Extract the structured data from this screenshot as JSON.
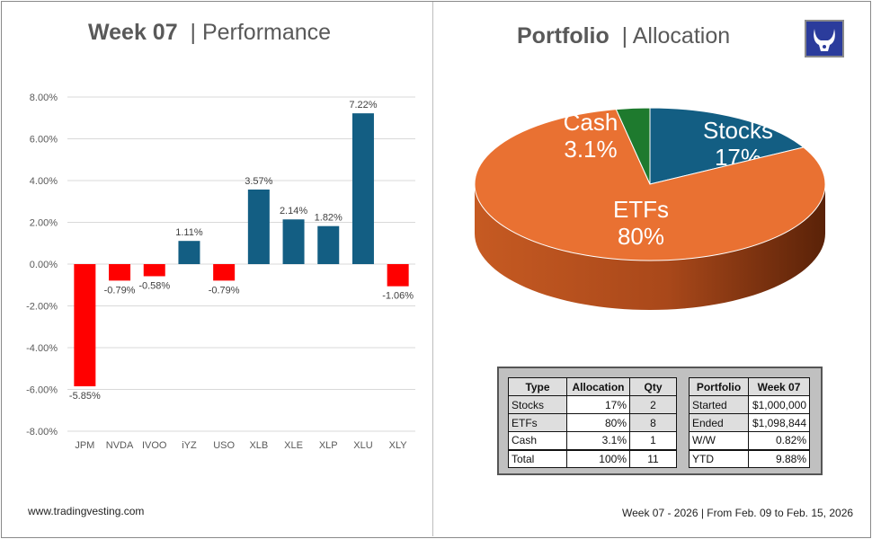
{
  "left": {
    "title_bold": "Week 07",
    "title_rest": "| Performance"
  },
  "right": {
    "title_bold": "Portfolio",
    "title_rest": "| Allocation"
  },
  "logo": {
    "icon": "bull-horns-icon",
    "bg": "#2b3c9c"
  },
  "chart_data": [
    {
      "type": "bar",
      "title": "",
      "categories": [
        "JPM",
        "NVDA",
        "IVOO",
        "iYZ",
        "USO",
        "XLB",
        "XLE",
        "XLP",
        "XLU",
        "XLY"
      ],
      "values": [
        -5.85,
        -0.79,
        -0.58,
        1.11,
        -0.79,
        3.57,
        2.14,
        1.82,
        7.22,
        -1.06
      ],
      "data_labels": [
        "-5.85%",
        "-0.79%",
        "-0.58%",
        "1.11%",
        "-0.79%",
        "3.57%",
        "2.14%",
        "1.82%",
        "7.22%",
        "-1.06%"
      ],
      "ylim": [
        -8,
        8
      ],
      "yticks": [
        "8.00%",
        "6.00%",
        "4.00%",
        "2.00%",
        "0.00%",
        "-2.00%",
        "-4.00%",
        "-6.00%",
        "-8.00%"
      ],
      "grid": true,
      "colors": {
        "positive": "#135e83",
        "negative": "#ff0000"
      }
    },
    {
      "type": "pie",
      "style": "3d",
      "slices": [
        {
          "label": "Stocks",
          "value": 17,
          "text": "17%",
          "color": "#135e83"
        },
        {
          "label": "ETFs",
          "value": 80,
          "text": "80%",
          "color": "#e97132"
        },
        {
          "label": "Cash",
          "value": 3.1,
          "text": "3.1%",
          "color": "#1e7a2e"
        }
      ]
    }
  ],
  "alloc_table": {
    "headers": [
      "Type",
      "Allocation",
      "Qty"
    ],
    "rows": [
      [
        "Stocks",
        "17%",
        "2"
      ],
      [
        "ETFs",
        "80%",
        "8"
      ],
      [
        "Cash",
        "3.1%",
        "1"
      ],
      [
        "Total",
        "100%",
        "11"
      ]
    ]
  },
  "port_table": {
    "headers": [
      "Portfolio",
      "Week 07"
    ],
    "rows": [
      [
        "Started",
        "$1,000,000"
      ],
      [
        "Ended",
        "$1,098,844"
      ],
      [
        "W/W",
        "0.82%"
      ],
      [
        "YTD",
        "9.88%"
      ]
    ]
  },
  "footer": {
    "site": "www.tradingvesting.com",
    "period": "Week 07 - 2026 | From Feb. 09 to Feb. 15, 2026"
  }
}
